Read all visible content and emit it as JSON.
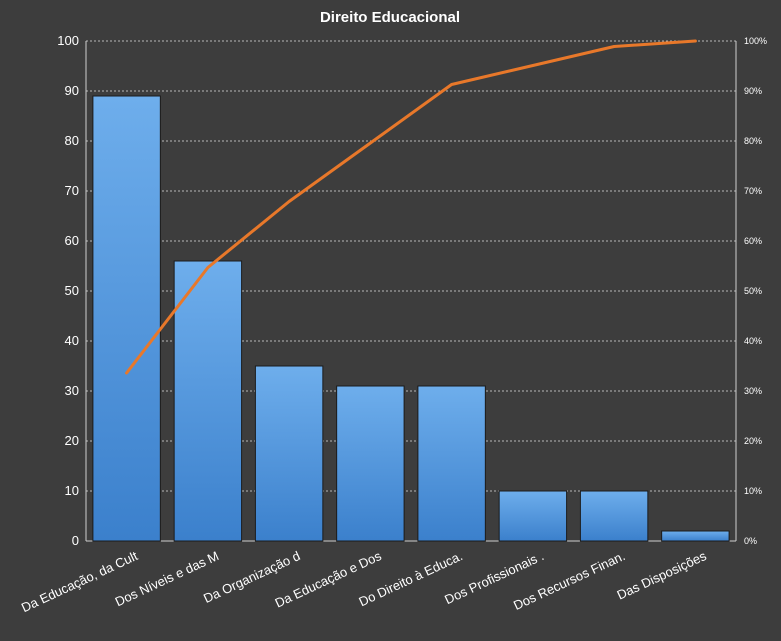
{
  "chart_data": {
    "type": "bar",
    "title": "Direito  Educacional",
    "categories": [
      "Da Educação, da Cult",
      "Dos Níveis e das M",
      "Da Organização d",
      "Da Educação e Dos",
      "Do Direito à Educa.",
      "Dos Profissionais  .",
      "Dos Recursos Finan.",
      "Das Disposições"
    ],
    "series": [
      {
        "type": "bar",
        "values": [
          89,
          56,
          35,
          31,
          31,
          10,
          10,
          2
        ],
        "color": "#4a8fd8"
      },
      {
        "type": "line",
        "axis": "right",
        "values": [
          33.6,
          54.7,
          67.9,
          79.6,
          91.3,
          95.1,
          98.9,
          100
        ],
        "color": "#e8782a"
      }
    ],
    "ylim": [
      0,
      100
    ],
    "y_ticks": [
      "0",
      "10",
      "20",
      "30",
      "40",
      "50",
      "60",
      "70",
      "80",
      "90",
      "100"
    ],
    "y2lim": [
      0,
      100
    ],
    "y2_ticks": [
      "0%",
      "10%",
      "20%",
      "30%",
      "40%",
      "50%",
      "60%",
      "70%",
      "80%",
      "90%",
      "100%"
    ],
    "grid": true,
    "legend": "none"
  }
}
